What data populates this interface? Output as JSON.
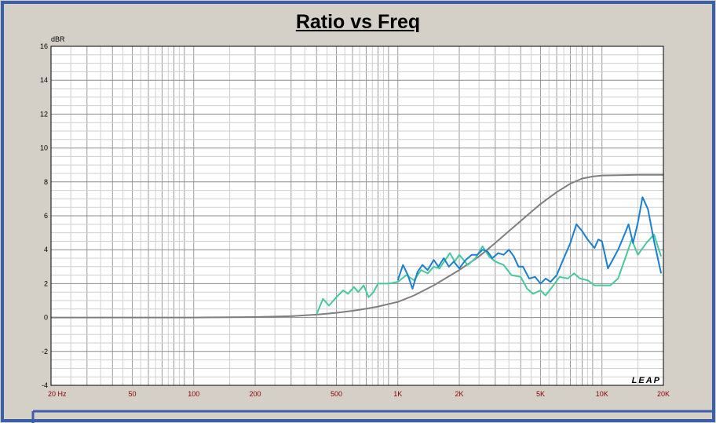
{
  "chart_data": {
    "type": "line",
    "title": "Ratio vs Freq",
    "ylabel": "dBR",
    "xscale": "log",
    "xlim": [
      20,
      20000
    ],
    "ylim": [
      -4,
      16
    ],
    "grid": true,
    "watermark": "LEAP",
    "x_tick_labels": [
      {
        "value": 20,
        "label": "20  Hz"
      },
      {
        "value": 50,
        "label": "50"
      },
      {
        "value": 100,
        "label": "100"
      },
      {
        "value": 200,
        "label": "200"
      },
      {
        "value": 500,
        "label": "500"
      },
      {
        "value": 1000,
        "label": "1K"
      },
      {
        "value": 2000,
        "label": "2K"
      },
      {
        "value": 5000,
        "label": "5K"
      },
      {
        "value": 10000,
        "label": "10K"
      },
      {
        "value": 20000,
        "label": "20K"
      }
    ],
    "y_ticks": [
      16,
      14,
      12,
      10,
      8,
      6,
      4,
      2,
      0,
      -2,
      -4
    ],
    "series": [
      {
        "color": "#7f7f7f",
        "points": [
          [
            20,
            0
          ],
          [
            100,
            0
          ],
          [
            200,
            0.03
          ],
          [
            300,
            0.08
          ],
          [
            400,
            0.17
          ],
          [
            500,
            0.28
          ],
          [
            600,
            0.4
          ],
          [
            700,
            0.52
          ],
          [
            800,
            0.65
          ],
          [
            1000,
            0.92
          ],
          [
            1200,
            1.3
          ],
          [
            1500,
            1.9
          ],
          [
            2000,
            2.8
          ],
          [
            2500,
            3.6
          ],
          [
            3000,
            4.4
          ],
          [
            4000,
            5.7
          ],
          [
            5000,
            6.7
          ],
          [
            6000,
            7.4
          ],
          [
            7000,
            7.9
          ],
          [
            8000,
            8.2
          ],
          [
            9000,
            8.32
          ],
          [
            10000,
            8.38
          ],
          [
            12000,
            8.4
          ],
          [
            15000,
            8.42
          ],
          [
            20000,
            8.42
          ]
        ]
      },
      {
        "color": "#47c99d",
        "points": [
          [
            400,
            0.2
          ],
          [
            430,
            1.1
          ],
          [
            460,
            0.7
          ],
          [
            500,
            1.2
          ],
          [
            540,
            1.6
          ],
          [
            570,
            1.4
          ],
          [
            610,
            1.8
          ],
          [
            640,
            1.5
          ],
          [
            680,
            1.9
          ],
          [
            720,
            1.2
          ],
          [
            760,
            1.5
          ],
          [
            800,
            2.0
          ],
          [
            900,
            2.0
          ],
          [
            1000,
            2.1
          ],
          [
            1100,
            2.5
          ],
          [
            1200,
            2.2
          ],
          [
            1300,
            2.8
          ],
          [
            1400,
            2.6
          ],
          [
            1500,
            3.0
          ],
          [
            1600,
            2.9
          ],
          [
            1800,
            3.8
          ],
          [
            1900,
            3.3
          ],
          [
            2000,
            3.7
          ],
          [
            2200,
            3.1
          ],
          [
            2400,
            3.5
          ],
          [
            2600,
            4.2
          ],
          [
            2800,
            3.6
          ],
          [
            3000,
            3.3
          ],
          [
            3300,
            3.1
          ],
          [
            3600,
            2.5
          ],
          [
            4000,
            2.4
          ],
          [
            4300,
            1.7
          ],
          [
            4600,
            1.4
          ],
          [
            5000,
            1.6
          ],
          [
            5300,
            1.3
          ],
          [
            5700,
            1.8
          ],
          [
            6200,
            2.4
          ],
          [
            6800,
            2.3
          ],
          [
            7300,
            2.6
          ],
          [
            7800,
            2.3
          ],
          [
            8500,
            2.2
          ],
          [
            9200,
            1.9
          ],
          [
            10000,
            1.9
          ],
          [
            11000,
            1.9
          ],
          [
            12000,
            2.3
          ],
          [
            13000,
            3.5
          ],
          [
            14000,
            4.6
          ],
          [
            15000,
            3.7
          ],
          [
            16500,
            4.4
          ],
          [
            18000,
            4.9
          ],
          [
            19500,
            3.6
          ]
        ]
      },
      {
        "color": "#1a7fd0",
        "points": [
          [
            1000,
            2.2
          ],
          [
            1060,
            3.1
          ],
          [
            1120,
            2.5
          ],
          [
            1180,
            1.7
          ],
          [
            1250,
            2.7
          ],
          [
            1320,
            3.1
          ],
          [
            1400,
            2.8
          ],
          [
            1500,
            3.4
          ],
          [
            1580,
            3.0
          ],
          [
            1680,
            3.5
          ],
          [
            1780,
            3.0
          ],
          [
            1880,
            3.3
          ],
          [
            2000,
            2.9
          ],
          [
            2150,
            3.4
          ],
          [
            2300,
            3.7
          ],
          [
            2450,
            3.7
          ],
          [
            2600,
            4.0
          ],
          [
            2750,
            3.9
          ],
          [
            2900,
            3.5
          ],
          [
            3100,
            3.8
          ],
          [
            3300,
            3.7
          ],
          [
            3500,
            4.0
          ],
          [
            3700,
            3.6
          ],
          [
            3900,
            3.0
          ],
          [
            4100,
            3.0
          ],
          [
            4400,
            2.3
          ],
          [
            4700,
            2.4
          ],
          [
            5000,
            2.0
          ],
          [
            5300,
            2.3
          ],
          [
            5600,
            2.1
          ],
          [
            6000,
            2.5
          ],
          [
            6500,
            3.5
          ],
          [
            7000,
            4.4
          ],
          [
            7500,
            5.5
          ],
          [
            8000,
            5.1
          ],
          [
            8500,
            4.6
          ],
          [
            9200,
            4.1
          ],
          [
            9600,
            4.6
          ],
          [
            10000,
            4.5
          ],
          [
            10700,
            2.9
          ],
          [
            11400,
            3.5
          ],
          [
            12000,
            4.0
          ],
          [
            12800,
            4.8
          ],
          [
            13500,
            5.5
          ],
          [
            14200,
            4.4
          ],
          [
            15000,
            5.6
          ],
          [
            15800,
            7.1
          ],
          [
            16800,
            6.4
          ],
          [
            18000,
            4.5
          ],
          [
            19500,
            2.6
          ]
        ]
      }
    ]
  }
}
